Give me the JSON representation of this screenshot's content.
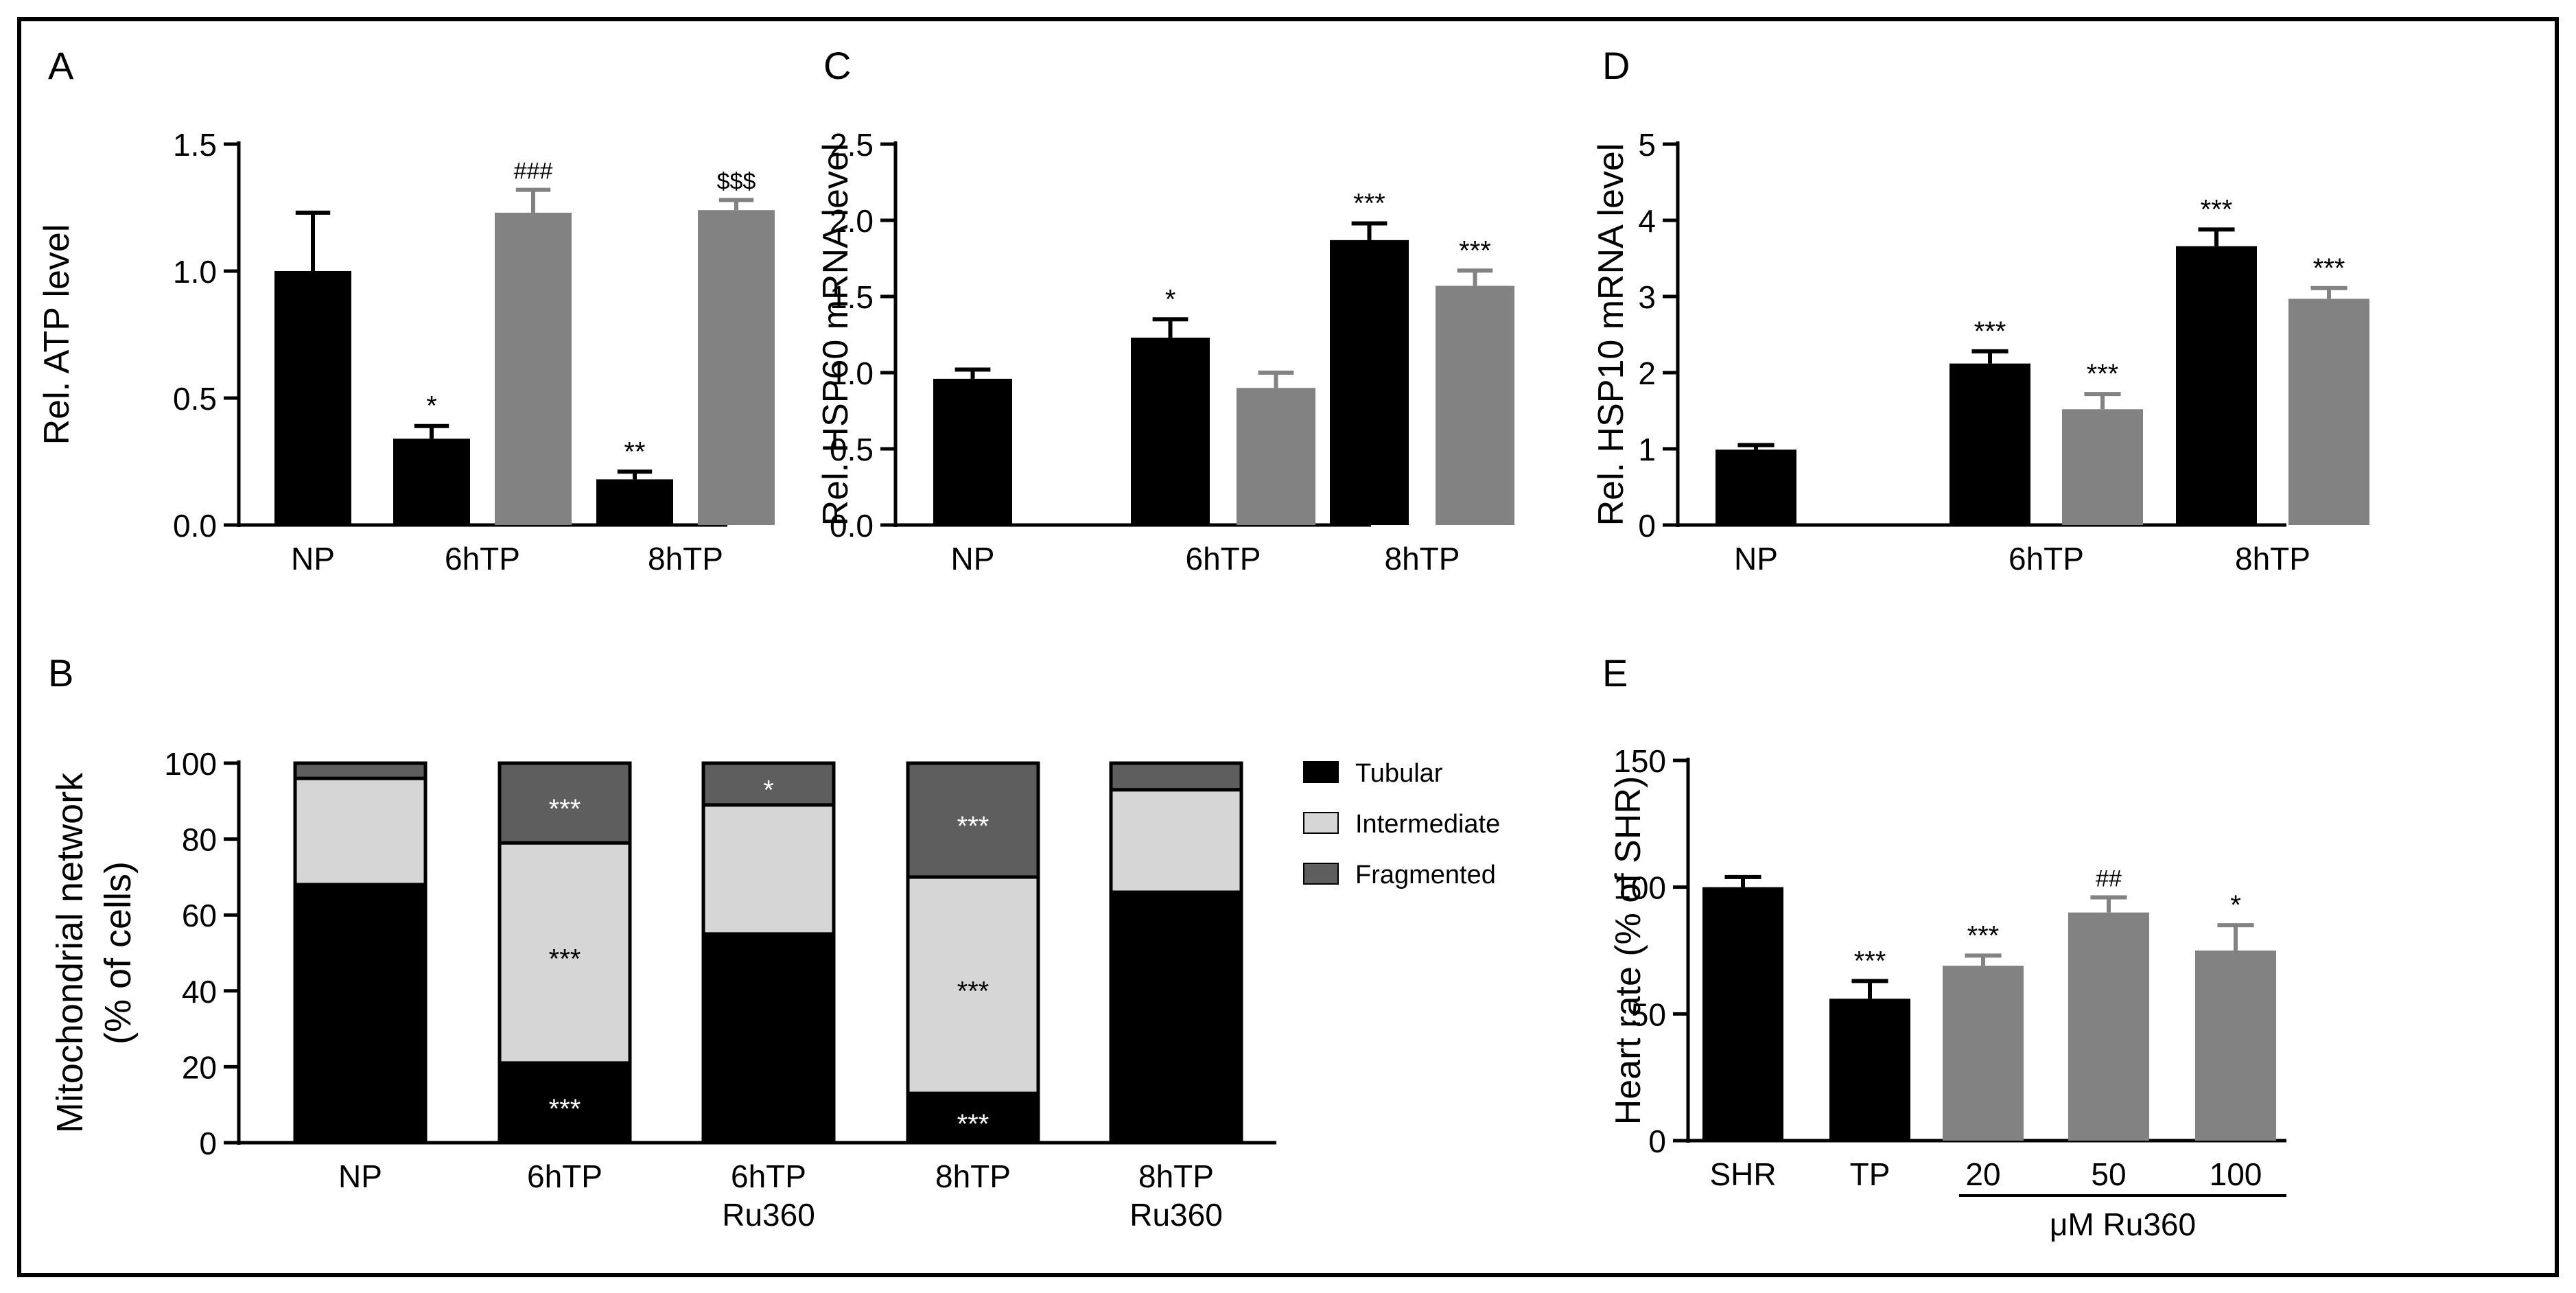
{
  "chart_data": [
    {
      "panel": "A",
      "type": "bar",
      "ylabel": "Rel. ATP level",
      "ylim": [
        0,
        1.5
      ],
      "ticks": [
        "0.0",
        "0.5",
        "1.0",
        "1.5"
      ],
      "categories": [
        "NP",
        "6hTP",
        "8hTP"
      ],
      "bars": [
        {
          "group": 0,
          "color": "black",
          "value": 1.0,
          "err": 0.23,
          "sig": ""
        },
        {
          "group": 1,
          "color": "black",
          "value": 0.34,
          "err": 0.05,
          "sig": "*"
        },
        {
          "group": 1,
          "color": "gray",
          "value": 1.23,
          "err": 0.09,
          "sig": "###"
        },
        {
          "group": 2,
          "color": "black",
          "value": 0.18,
          "err": 0.03,
          "sig": "**"
        },
        {
          "group": 2,
          "color": "gray",
          "value": 1.24,
          "err": 0.04,
          "sig": "$$$"
        }
      ]
    },
    {
      "panel": "C",
      "type": "bar",
      "ylabel": "Rel. HSP60 mRNA level",
      "ylim": [
        0,
        2.5
      ],
      "ticks": [
        "0.0",
        "0.5",
        "1.0",
        "1.5",
        "2.0",
        "2.5"
      ],
      "categories": [
        "NP",
        "6hTP",
        "8hTP"
      ],
      "bars": [
        {
          "group": 0,
          "color": "black",
          "value": 0.96,
          "err": 0.06,
          "sig": ""
        },
        {
          "group": 1,
          "color": "black",
          "value": 1.23,
          "err": 0.12,
          "sig": "*"
        },
        {
          "group": 1,
          "color": "gray",
          "value": 0.9,
          "err": 0.1,
          "sig": ""
        },
        {
          "group": 2,
          "color": "black",
          "value": 1.87,
          "err": 0.11,
          "sig": "***"
        },
        {
          "group": 2,
          "color": "gray",
          "value": 1.57,
          "err": 0.1,
          "sig": "***"
        }
      ]
    },
    {
      "panel": "D",
      "type": "bar",
      "ylabel": "Rel. HSP10 mRNA level",
      "ylim": [
        0,
        5
      ],
      "ticks": [
        "0",
        "1",
        "2",
        "3",
        "4",
        "5"
      ],
      "categories": [
        "NP",
        "6hTP",
        "8hTP"
      ],
      "bars": [
        {
          "group": 0,
          "color": "black",
          "value": 0.99,
          "err": 0.06,
          "sig": ""
        },
        {
          "group": 1,
          "color": "black",
          "value": 2.12,
          "err": 0.16,
          "sig": "***"
        },
        {
          "group": 1,
          "color": "gray",
          "value": 1.52,
          "err": 0.2,
          "sig": "***"
        },
        {
          "group": 2,
          "color": "black",
          "value": 3.66,
          "err": 0.22,
          "sig": "***"
        },
        {
          "group": 2,
          "color": "gray",
          "value": 2.97,
          "err": 0.14,
          "sig": "***"
        }
      ]
    },
    {
      "panel": "B",
      "type": "bar",
      "stacked": true,
      "ylabel": [
        "Mitochondrial network",
        "(% of cells)"
      ],
      "ylim": [
        0,
        100
      ],
      "ticks": [
        "0",
        "20",
        "40",
        "60",
        "80",
        "100"
      ],
      "categories": [
        [
          "NP"
        ],
        [
          "6hTP"
        ],
        [
          "6hTP",
          "Ru360"
        ],
        [
          "8hTP"
        ],
        [
          "8hTP",
          "Ru360"
        ]
      ],
      "series": [
        {
          "name": "Tubular",
          "color": "#000000",
          "values": [
            68,
            21,
            55,
            13,
            66
          ],
          "sig": [
            "",
            "***",
            "",
            "***",
            ""
          ]
        },
        {
          "name": "Intermediate",
          "color": "#d6d6d6",
          "values": [
            28,
            58,
            34,
            57,
            27
          ],
          "sig": [
            "",
            "***",
            "",
            "***",
            ""
          ]
        },
        {
          "name": "Fragmented",
          "color": "#5e5e5e",
          "values": [
            4,
            21,
            11,
            30,
            7
          ],
          "sig": [
            "",
            "***",
            "*",
            "***",
            ""
          ]
        }
      ]
    },
    {
      "panel": "E",
      "type": "bar",
      "ylabel": "Heart rate (% of SHR)",
      "ylim": [
        0,
        150
      ],
      "ticks": [
        "0",
        "50",
        "100",
        "150"
      ],
      "categories": [
        "SHR",
        "TP",
        "20",
        "50",
        "100"
      ],
      "group_label": "μM Ru360",
      "bars": [
        {
          "group": 0,
          "color": "black",
          "value": 100,
          "err": 4,
          "sig": ""
        },
        {
          "group": 1,
          "color": "black",
          "value": 56,
          "err": 7,
          "sig": "***"
        },
        {
          "group": 2,
          "color": "gray",
          "value": 69,
          "err": 4,
          "sig": "***"
        },
        {
          "group": 3,
          "color": "gray",
          "value": 90,
          "err": 6,
          "sig": "##"
        },
        {
          "group": 4,
          "color": "gray",
          "value": 75,
          "err": 10,
          "sig": "*"
        }
      ]
    }
  ]
}
